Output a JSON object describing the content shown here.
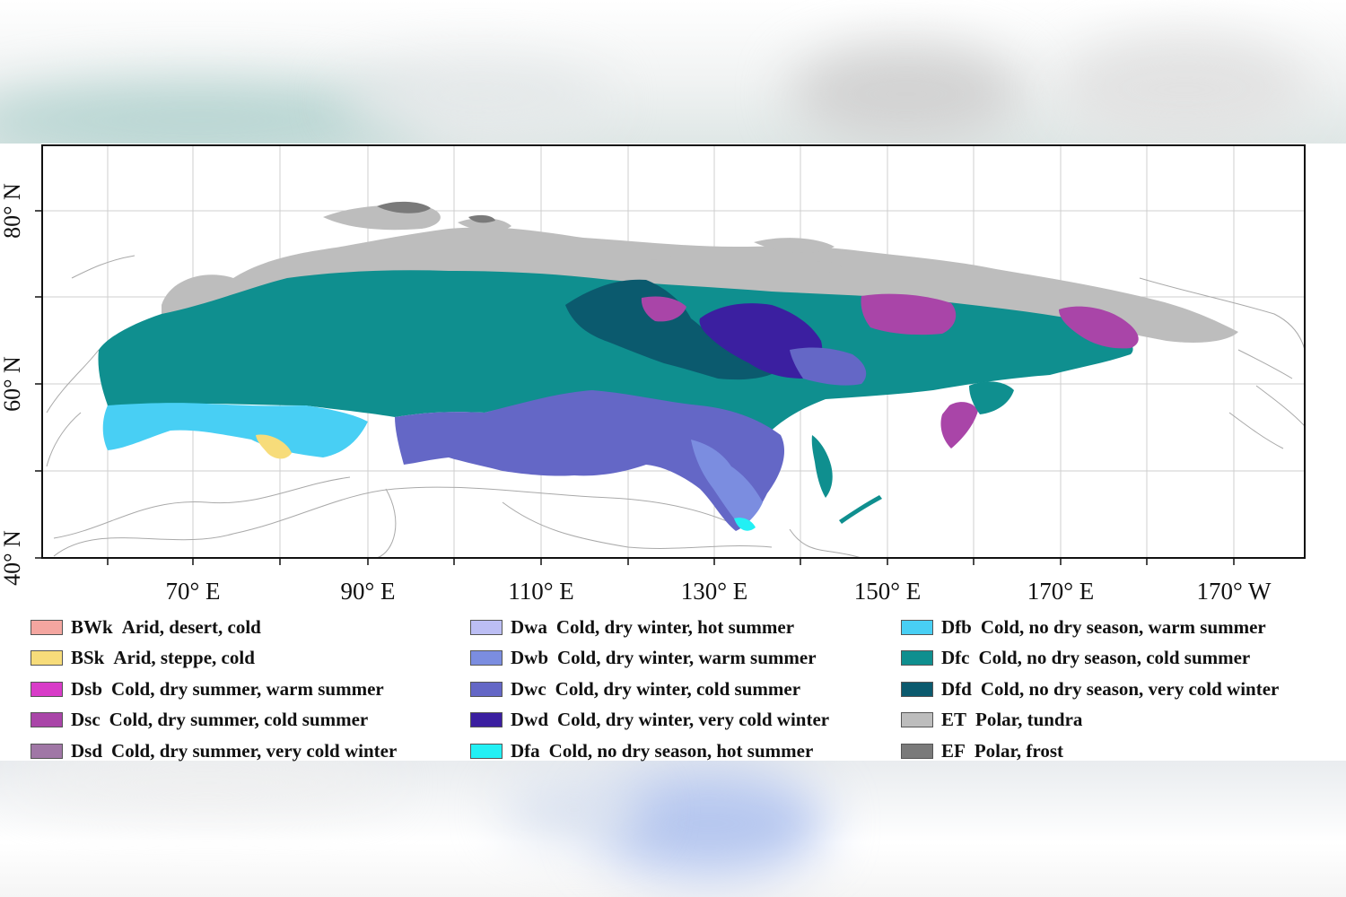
{
  "map": {
    "lat_labels": [
      "80° N",
      "60° N",
      "40° N"
    ],
    "lon_labels": [
      "70° E",
      "90° E",
      "110° E",
      "130° E",
      "150° E",
      "170° E",
      "170° W"
    ]
  },
  "legend": {
    "columns": [
      [
        {
          "code": "BWk",
          "desc": "Arid, desert, cold",
          "color": "#f4a6a0"
        },
        {
          "code": "BSk",
          "desc": "Arid, steppe, cold",
          "color": "#f7dc7a"
        },
        {
          "code": "Dsb",
          "desc": "Cold, dry summer, warm summer",
          "color": "#d83cc8"
        },
        {
          "code": "Dsc",
          "desc": "Cold, dry summer, cold summer",
          "color": "#a945a8"
        },
        {
          "code": "Dsd",
          "desc": "Cold, dry summer, very cold winter",
          "color": "#a077a6"
        }
      ],
      [
        {
          "code": "Dwa",
          "desc": "Cold, dry winter, hot summer",
          "color": "#bcbef4"
        },
        {
          "code": "Dwb",
          "desc": "Cold, dry winter, warm summer",
          "color": "#7b8de0"
        },
        {
          "code": "Dwc",
          "desc": "Cold, dry winter, cold summer",
          "color": "#6467c6"
        },
        {
          "code": "Dwd",
          "desc": "Cold, dry winter, very cold winter",
          "color": "#3b1fa0"
        },
        {
          "code": "Dfa",
          "desc": "Cold, no dry season, hot summer",
          "color": "#22f0f4"
        }
      ],
      [
        {
          "code": "Dfb",
          "desc": "Cold, no dry season, warm summer",
          "color": "#48cff4"
        },
        {
          "code": "Dfc",
          "desc": "Cold, no dry season, cold summer",
          "color": "#0f8f8f"
        },
        {
          "code": "Dfd",
          "desc": "Cold, no dry season, very cold winter",
          "color": "#0b5a6e"
        },
        {
          "code": "ET",
          "desc": "Polar, tundra",
          "color": "#bdbdbd"
        },
        {
          "code": "EF",
          "desc": "Polar, frost",
          "color": "#7a7a7a"
        }
      ]
    ]
  }
}
